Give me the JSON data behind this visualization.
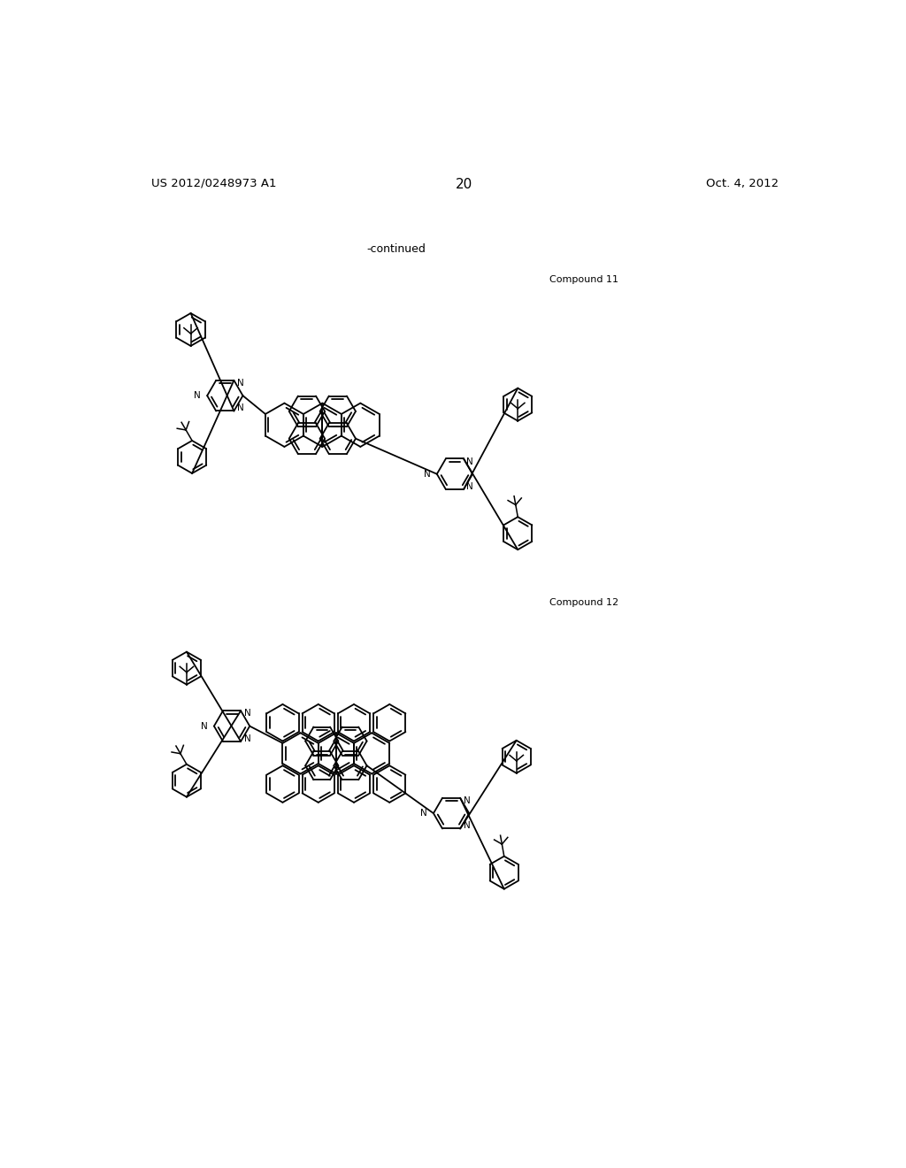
{
  "background_color": "#ffffff",
  "page_number": "20",
  "patent_number": "US 2012/0248973 A1",
  "patent_date": "Oct. 4, 2012",
  "continued_text": "-continued",
  "compound11_label": "Compound 11",
  "compound12_label": "Compound 12",
  "figsize": [
    10.24,
    13.2
  ],
  "dpi": 100
}
